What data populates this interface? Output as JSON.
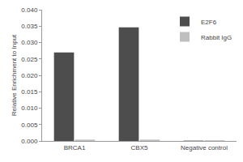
{
  "chart_data": {
    "type": "bar",
    "categories": [
      "BRCA1",
      "CBX5",
      "Negative control"
    ],
    "series": [
      {
        "name": "E2F6",
        "color": "#4d4d4d",
        "values": [
          0.027,
          0.0346,
          0.0001
        ]
      },
      {
        "name": "Rabbit IgG",
        "color": "#bfbfbf",
        "values": [
          0.0004,
          0.0004,
          0.0002
        ]
      }
    ],
    "y_label": "Relative Enrichment to Input",
    "ylim": [
      0,
      0.04
    ],
    "yticks": [
      {
        "value": 0,
        "label": "0.000"
      },
      {
        "value": 0.005,
        "label": "0.005"
      },
      {
        "value": 0.01,
        "label": "0.010"
      },
      {
        "value": 0.015,
        "label": "0.015"
      },
      {
        "value": 0.02,
        "label": "0.020"
      },
      {
        "value": 0.025,
        "label": "0.025"
      },
      {
        "value": 0.03,
        "label": "0.030"
      },
      {
        "value": 0.035,
        "label": "0.035"
      },
      {
        "value": 0.04,
        "label": "0.040"
      }
    ],
    "grid": false,
    "legend": "top-right"
  }
}
